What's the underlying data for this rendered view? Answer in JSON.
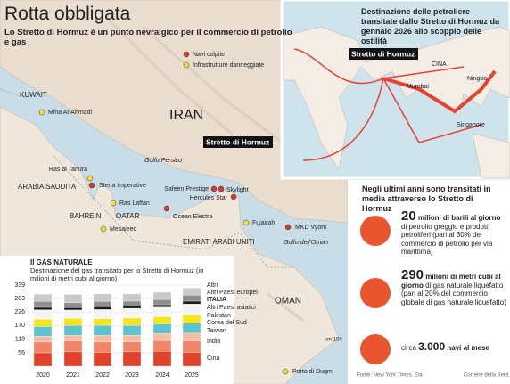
{
  "header": {
    "title": "Rotta obbligata",
    "subtitle": "Lo Stretto di Hormuz è un punto nevralgico per il commercio di petrolio e gas"
  },
  "map": {
    "legend": [
      {
        "label": "Navi colpite",
        "color": "#d8392b"
      },
      {
        "label": "Infrastrutture danneggiate",
        "color": "#f2e23a"
      }
    ],
    "regions": [
      "KUWAIT",
      "IRAN",
      "ARABIA SAUDITA",
      "BAHREIN",
      "QATAR",
      "EMIRATI ARABI UNITI",
      "OMAN"
    ],
    "seas": [
      "Golfo Persico",
      "Golfo dell'Oman"
    ],
    "strait": "Stretto di Hormuz",
    "points": [
      {
        "label": "Mina Al-Ahmadi",
        "color": "#f2e23a"
      },
      {
        "label": "Ras al Tanura",
        "color": "#f2e23a"
      },
      {
        "label": "Stena Imperative",
        "color": "#d8392b"
      },
      {
        "label": "Ras Laffan",
        "color": "#f2e23a"
      },
      {
        "label": "Mesaieed",
        "color": "#f2e23a"
      },
      {
        "label": "Safeen Prestige",
        "color": "#d8392b"
      },
      {
        "label": "Skylight",
        "color": "#d8392b"
      },
      {
        "label": "Hercules Star",
        "color": "#d8392b"
      },
      {
        "label": "Ocean Electra",
        "color": "#d8392b"
      },
      {
        "label": "Fujairah",
        "color": "#f2e23a"
      },
      {
        "label": "MKD Vyom",
        "color": "#d8392b"
      },
      {
        "label": "Porto di Duqm",
        "color": "#f2e23a"
      }
    ],
    "scale": "km 100"
  },
  "inset": {
    "title": "Destinazione delle petroliere transitate dallo Stretto di Hormuz da gennaio 2026 allo scoppio delle ostilità",
    "strait": "Stretto di Hormuz",
    "labels": [
      "CINA",
      "Mumbai",
      "Ningbo",
      "Singapore"
    ]
  },
  "stats": {
    "title": "Negli ultimi anni sono transitati in media attraverso lo Stretto di Hormuz",
    "items": [
      {
        "big": "20",
        "unit": "milioni di barili al giorno",
        "text": "di petrolio greggio e prodotti petroliferi (pari al 30% del commercio di petrolio per via marittima)"
      },
      {
        "big": "290",
        "unit": "milioni di metri cubi al giorno",
        "text": "di gas naturale liquefatto (pari al 20% del commercio globale di gas naturale liquefatto)"
      },
      {
        "pre": "circa",
        "big": "3.000",
        "unit": "navi al mese"
      }
    ]
  },
  "chart_data": {
    "type": "stacked_bar",
    "title": "Il GAS NATURALE",
    "subtitle": "Destinazione del gas transitato per lo Stretto di Hormuz (in milioni di metri cubi al giorno)",
    "categories": [
      "2020",
      "2021",
      "2022",
      "2023",
      "2024",
      "2025"
    ],
    "series": [
      {
        "name": "Cina",
        "color": "#e2412c",
        "values": [
          56,
          60,
          58,
          60,
          62,
          58
        ]
      },
      {
        "name": "India",
        "color": "#ef8466",
        "values": [
          45,
          45,
          43,
          42,
          45,
          48
        ]
      },
      {
        "name": "Taiwan",
        "color": "#f6bca4",
        "values": [
          25,
          25,
          28,
          28,
          30,
          32
        ]
      },
      {
        "name": "Corea del Sud",
        "color": "#5cc3cf",
        "values": [
          40,
          40,
          42,
          40,
          40,
          42
        ]
      },
      {
        "name": "Pakistan",
        "color": "#f4e51c",
        "values": [
          30,
          30,
          28,
          32,
          30,
          35
        ]
      },
      {
        "name": "Altri Paesi asiatici",
        "color": "#f4f4f4",
        "values": [
          40,
          35,
          38,
          40,
          40,
          45
        ]
      },
      {
        "name": "ITALIA",
        "color": "#1a1a1a",
        "values": [
          10,
          10,
          12,
          10,
          10,
          12
        ]
      },
      {
        "name": "Altri Paesi europei",
        "color": "#8e8e8e",
        "values": [
          25,
          20,
          22,
          20,
          22,
          25
        ]
      },
      {
        "name": "Altri",
        "color": "#c9c9c9",
        "values": [
          30,
          35,
          32,
          30,
          30,
          30
        ]
      }
    ],
    "ylim": [
      0,
      339
    ],
    "yticks": [
      56,
      113,
      170,
      226,
      283,
      339
    ],
    "grid": true
  },
  "footer": {
    "source": "Fonte: New York Times, Eia",
    "credit": "Corriere della Sera"
  }
}
